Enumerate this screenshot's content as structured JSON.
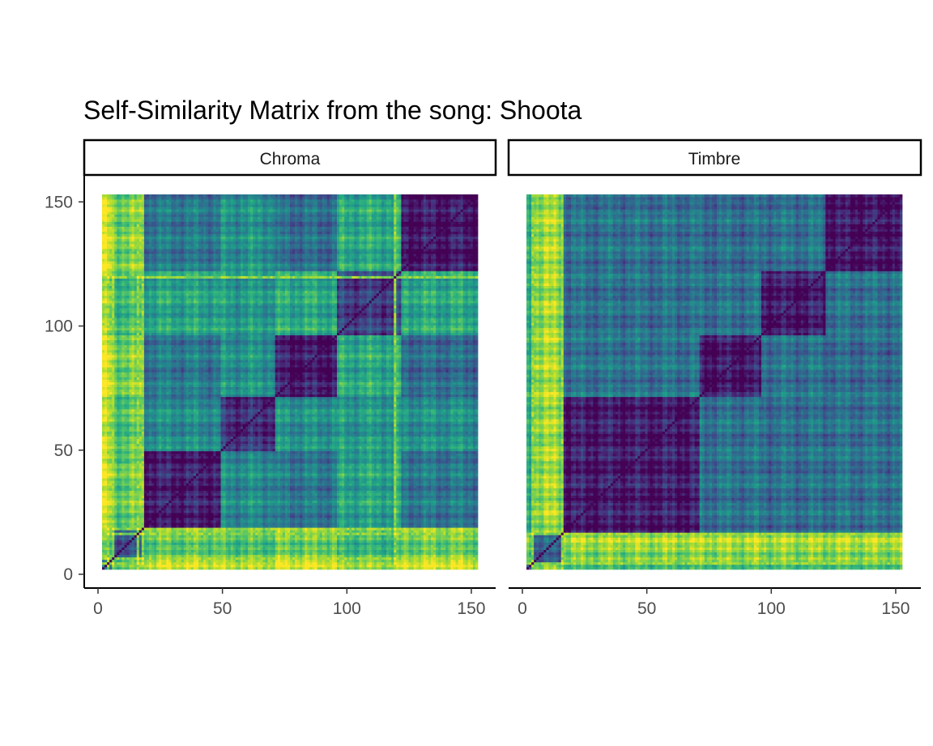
{
  "chart_data": {
    "type": "heatmap",
    "title": "Self-Similarity Matrix from the song: Shoota",
    "colormap": "viridis",
    "n": 152,
    "xlim": [
      0,
      152
    ],
    "ylim": [
      0,
      152
    ],
    "xticks": [
      0,
      50,
      100,
      150
    ],
    "yticks": [
      0,
      50,
      100,
      150
    ],
    "facets": [
      {
        "name": "Chroma",
        "segments": [
          0,
          4,
          17,
          48,
          70,
          95,
          121,
          152
        ],
        "segment_levels": [
          0.55,
          0.45,
          0.14,
          0.22,
          0.1,
          0.3,
          0.1
        ],
        "bright_lines": [
          2,
          4,
          14,
          16,
          118
        ],
        "cell_matrix_note": "distance matrix; diagonal = 0"
      },
      {
        "name": "Timbre",
        "segments": [
          0,
          2,
          15,
          70,
          95,
          121,
          152
        ],
        "segment_levels": [
          0.3,
          0.5,
          0.12,
          0.1,
          0.12,
          0.1
        ],
        "bright_lines": [
          2,
          14
        ],
        "cell_matrix_note": "distance matrix; diagonal = 0"
      }
    ]
  }
}
